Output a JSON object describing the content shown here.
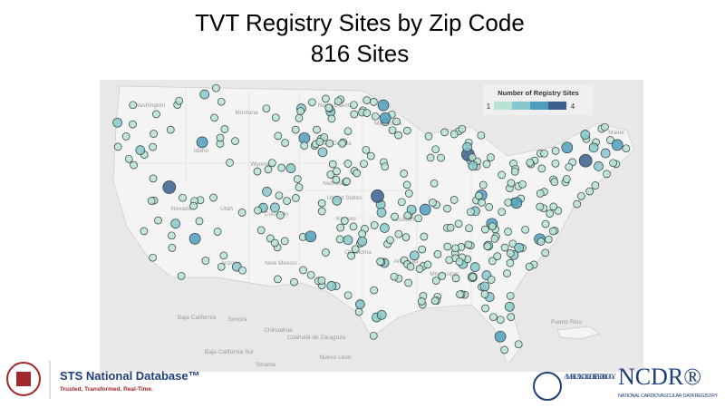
{
  "title": "TVT Registry Sites by Zip Code",
  "subtitle": "816 Sites",
  "legend": {
    "title": "Number of Registry Sites",
    "min_label": "1",
    "max_label": "4",
    "colors": [
      "#b8e3d3",
      "#86c8cd",
      "#4f9dbd",
      "#3b5f8f"
    ]
  },
  "map_labels": {
    "washington": "Washington",
    "montana": "Montana",
    "north_dakota": "North Dakota",
    "south_dakota": "South Dakota",
    "minnesota": "Minnesota",
    "idaho": "Idaho",
    "wyoming": "Wyoming",
    "nevada": "Nevada",
    "utah": "Utah",
    "colorado": "Colorado",
    "nebraska": "Nebraska",
    "kansas": "Kansas",
    "united_states": "United States",
    "missouri": "Missouri",
    "arizona": "Arizona",
    "new_mexico": "New Mexico",
    "oklahoma": "Oklahoma",
    "arkansas": "Arkansas",
    "mississippi": "Mississippi",
    "maine": "Maine",
    "baja_california": "Baja California",
    "sonora": "Sonora",
    "chihuahua": "Chihuahua",
    "coahuila": "Coahuila de Zaragoza",
    "nuevo_leon": "Nuevo Leon",
    "baja_california_sur": "Baja California Sur",
    "sinaloa": "Sinaloa",
    "puerto_rico": "Puerto Rico"
  },
  "footer": {
    "sts_name": "STS National Database™",
    "sts_tagline": "Trusted. Transformed. Real-Time.",
    "acc_name": "AMERICAN COLLEGE of CARDIOLOGY",
    "ncdr_name": "NCDR®",
    "ncdr_tagline": "NATIONAL CARDIOVASCULAR DATA REGISTRY"
  }
}
